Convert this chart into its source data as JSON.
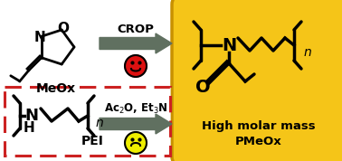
{
  "bg_color": "#ffffff",
  "yellow_box_color": "#F5C518",
  "yellow_box_edge": "#C89000",
  "arrow_color": "#607060",
  "dashed_box_color": "#cc2222",
  "sad_face_color": "#dd1111",
  "happy_face_color": "#eeee00",
  "face_edge_color": "#222222",
  "title_line1": "High molar mass",
  "title_line2": "PMeOx",
  "label_MeOx": "MeOx",
  "label_PEI": "PEI",
  "label_CROP": "CROP",
  "label_reagents": "Ac$_2$O, Et$_3$N"
}
